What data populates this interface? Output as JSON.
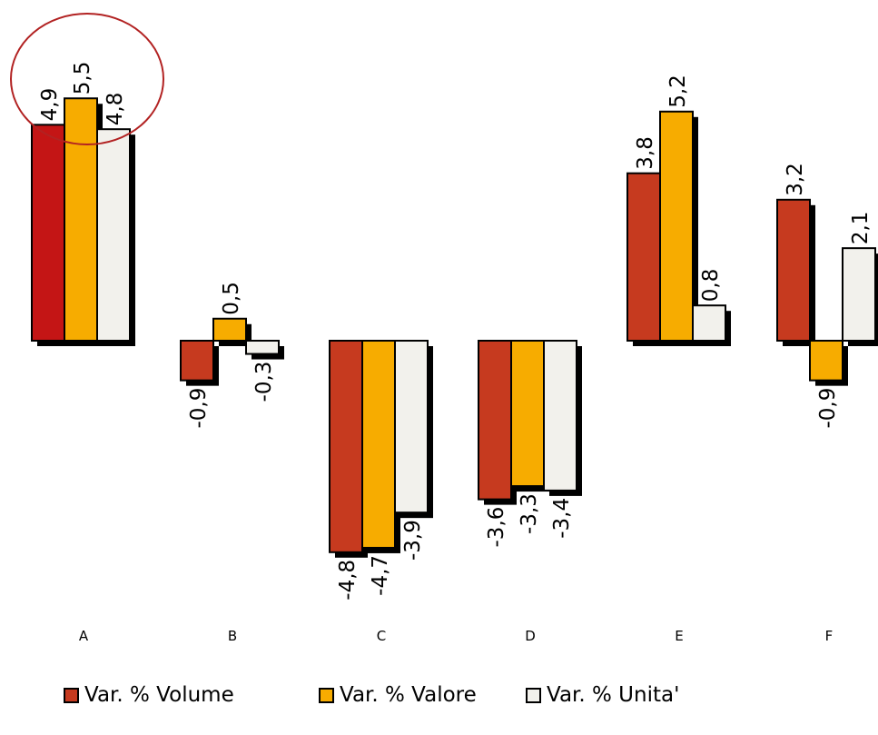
{
  "chart_data": {
    "type": "bar",
    "categories": [
      "A",
      "B",
      "C",
      "D",
      "E",
      "F"
    ],
    "series": [
      {
        "name": "Var. % Volume",
        "color": "#c63a1f",
        "values": [
          4.9,
          -0.9,
          -4.8,
          -3.6,
          3.8,
          3.2
        ],
        "labels": [
          "4,9",
          "-0,9",
          "-4,8",
          "-3,6",
          "3,8",
          "3,2"
        ]
      },
      {
        "name": "Var. % Valore",
        "color": "#f7ac00",
        "values": [
          5.5,
          0.5,
          -4.7,
          -3.3,
          5.2,
          -0.9
        ],
        "labels": [
          "5,5",
          "0,5",
          "-4,7",
          "-3,3",
          "5,2",
          "-0,9"
        ]
      },
      {
        "name": "Var. % Unita'",
        "color": "#f2f1ec",
        "values": [
          4.8,
          -0.3,
          -3.9,
          -3.4,
          0.8,
          2.1
        ],
        "labels": [
          "4,8",
          "-0,3",
          "-3,9",
          "-3,4",
          "0,8",
          "2,1"
        ]
      }
    ],
    "highlight": {
      "category": "A",
      "shape": "ellipse",
      "color": "#b22222",
      "first_bar_color": "#c41515"
    },
    "grid": false,
    "legend_position": "bottom"
  }
}
